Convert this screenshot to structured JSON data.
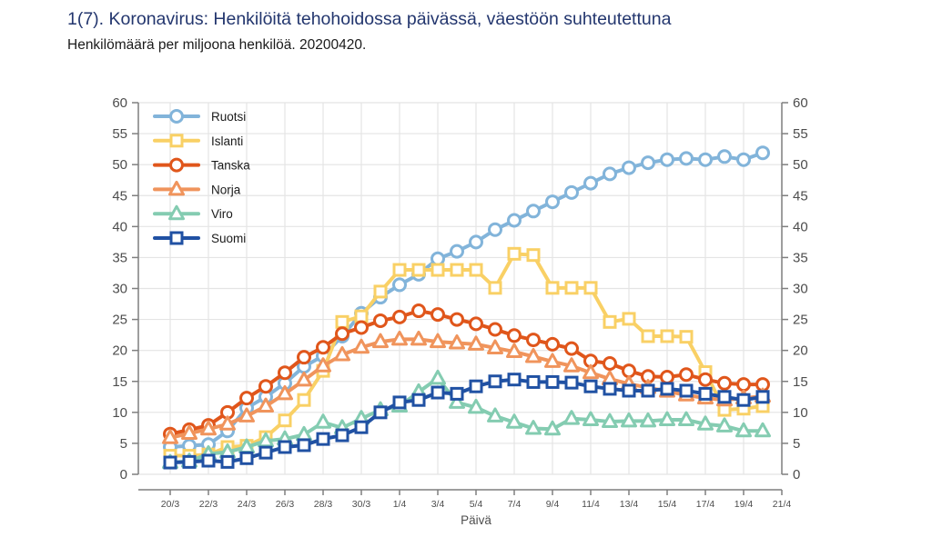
{
  "header": {
    "title": "1(7). Koronavirus: Henkilöitä tehohoidossa päivässä, väestöön suhteutettuna",
    "subtitle": "Henkilömäärä per miljoona henkilöä. 20200420."
  },
  "colors": {
    "title_text": "#23366e",
    "subtitle_text": "#1a1a1a",
    "axis_line": "#7f7f7f",
    "tick_label": "#4d4d4d",
    "grid_line": "#e4e4e4",
    "legend_text": "#1a1a1a"
  },
  "chart_data": {
    "type": "line",
    "title": "",
    "xlabel": "Päivä",
    "ylabel": "",
    "ylim": [
      0,
      60
    ],
    "y_tick_step": 5,
    "grid": "on",
    "legend_position": "top-left",
    "x": [
      "20/3",
      "21/3",
      "22/3",
      "23/3",
      "24/3",
      "25/3",
      "26/3",
      "27/3",
      "28/3",
      "29/3",
      "30/3",
      "31/3",
      "1/4",
      "2/4",
      "3/4",
      "4/4",
      "5/4",
      "6/4",
      "7/4",
      "8/4",
      "9/4",
      "10/4",
      "11/4",
      "12/4",
      "13/4",
      "14/4",
      "15/4",
      "16/4",
      "17/4",
      "18/4",
      "19/4",
      "20/4"
    ],
    "x_tick_labels": [
      "20/3",
      "22/3",
      "24/3",
      "26/3",
      "28/3",
      "30/3",
      "1/4",
      "3/4",
      "5/4",
      "7/4",
      "9/4",
      "11/4",
      "13/4",
      "15/4",
      "17/4",
      "19/4",
      "21/4"
    ],
    "series": [
      {
        "name": "Ruotsi",
        "color": "#82b4da",
        "marker": "circle",
        "values": [
          4.4,
          4.6,
          4.8,
          7.0,
          10.7,
          12.5,
          14.7,
          17.4,
          19.1,
          22.3,
          26.0,
          28.6,
          30.6,
          32.3,
          34.8,
          36.0,
          37.5,
          39.5,
          41.0,
          42.5,
          44.0,
          45.5,
          47.0,
          48.5,
          49.5,
          50.3,
          50.8,
          51.0,
          50.8,
          51.3,
          50.8,
          51.9
        ]
      },
      {
        "name": "Islanti",
        "color": "#f9d065",
        "marker": "square",
        "values": [
          3.0,
          3.0,
          3.2,
          4.4,
          4.6,
          6.0,
          8.7,
          12.0,
          16.7,
          24.6,
          25.5,
          29.5,
          33.0,
          33.0,
          33.0,
          33.0,
          33.0,
          30.1,
          35.6,
          35.4,
          30.1,
          30.1,
          30.1,
          24.6,
          25.1,
          22.3,
          22.3,
          22.2,
          16.5,
          10.4,
          10.6,
          11.0
        ]
      },
      {
        "name": "Tanska",
        "color": "#e0561b",
        "marker": "circle",
        "values": [
          6.5,
          7.2,
          7.9,
          10.0,
          12.3,
          14.2,
          16.4,
          18.9,
          20.5,
          22.7,
          23.7,
          24.8,
          25.4,
          26.4,
          25.8,
          25.0,
          24.3,
          23.4,
          22.4,
          21.7,
          21.0,
          20.3,
          18.3,
          17.9,
          16.7,
          15.8,
          15.7,
          16.1,
          15.3,
          14.7,
          14.5,
          14.5
        ]
      },
      {
        "name": "Norja",
        "color": "#f0945c",
        "marker": "triangle",
        "values": [
          5.9,
          6.6,
          7.3,
          8.1,
          9.4,
          11.0,
          13.0,
          15.2,
          17.5,
          19.3,
          20.5,
          21.4,
          21.8,
          21.8,
          21.4,
          21.2,
          21.0,
          20.4,
          19.8,
          19.0,
          18.2,
          17.5,
          16.4,
          15.4,
          14.6,
          14.0,
          13.4,
          12.8,
          12.3,
          12.0,
          12.3,
          12.6
        ]
      },
      {
        "name": "Viro",
        "color": "#84ccb1",
        "marker": "triangle",
        "values": [
          1.9,
          2.1,
          3.3,
          3.6,
          4.4,
          5.4,
          5.7,
          6.4,
          8.4,
          7.5,
          9.0,
          10.4,
          11.0,
          13.3,
          15.5,
          11.6,
          10.8,
          9.4,
          8.4,
          7.4,
          7.3,
          9.0,
          8.8,
          8.5,
          8.6,
          8.6,
          8.8,
          8.8,
          8.1,
          7.8,
          7.0,
          7.0
        ]
      },
      {
        "name": "Suomi",
        "color": "#2051a3",
        "marker": "square",
        "values": [
          1.9,
          2.0,
          2.2,
          2.0,
          2.6,
          3.5,
          4.4,
          4.7,
          5.7,
          6.3,
          7.6,
          10.0,
          11.6,
          12.0,
          13.2,
          13.0,
          14.2,
          15.0,
          15.3,
          14.9,
          14.9,
          14.8,
          14.2,
          13.8,
          13.5,
          13.5,
          13.8,
          13.5,
          13.0,
          12.5,
          12.0,
          12.5
        ]
      }
    ]
  }
}
